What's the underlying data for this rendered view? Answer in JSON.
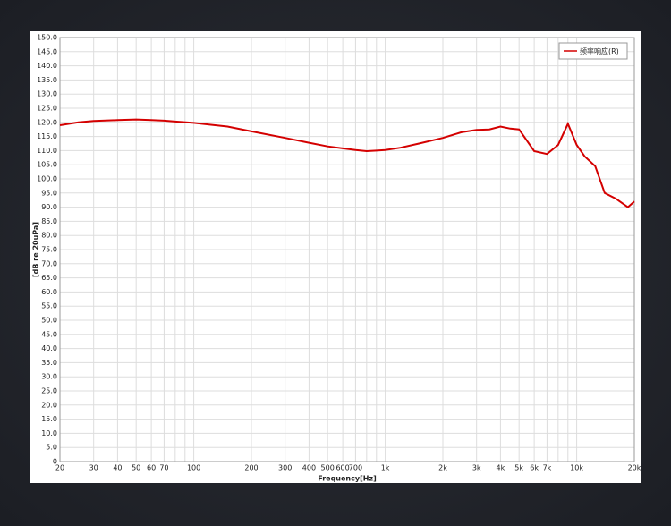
{
  "chart_data": {
    "type": "line",
    "xlabel": "Frequency[Hz]",
    "ylabel": "[dB re 20uPa]",
    "xscale": "log",
    "grid": true,
    "legend": "upper right",
    "xlim": [
      20,
      20000
    ],
    "ylim": [
      0,
      150
    ],
    "xticks": [
      20,
      30,
      40,
      50,
      60,
      70,
      100,
      200,
      300,
      400,
      500,
      600,
      700,
      {
        "value": 1000,
        "label": "1k"
      },
      {
        "value": 2000,
        "label": "2k"
      },
      {
        "value": 3000,
        "label": "3k"
      },
      {
        "value": 4000,
        "label": "4k"
      },
      {
        "value": 5000,
        "label": "5k"
      },
      {
        "value": 6000,
        "label": "6k"
      },
      {
        "value": 7000,
        "label": "7k"
      },
      {
        "value": 10000,
        "label": "10k"
      },
      {
        "value": 20000,
        "label": "20k"
      }
    ],
    "minor_xticks": [
      80,
      90,
      800,
      900,
      8000,
      9000
    ],
    "yticks": [
      0,
      {
        "value": 5,
        "label": "5.0"
      },
      {
        "value": 10,
        "label": "10.0"
      },
      {
        "value": 15,
        "label": "15.0"
      },
      {
        "value": 20,
        "label": "20.0"
      },
      {
        "value": 25,
        "label": "25.0"
      },
      {
        "value": 30,
        "label": "30.0"
      },
      {
        "value": 35,
        "label": "35.0"
      },
      {
        "value": 40,
        "label": "40.0"
      },
      {
        "value": 45,
        "label": "45.0"
      },
      {
        "value": 50,
        "label": "50.0"
      },
      {
        "value": 55,
        "label": "55.0"
      },
      {
        "value": 60,
        "label": "60.0"
      },
      {
        "value": 65,
        "label": "65.0"
      },
      {
        "value": 70,
        "label": "70.0"
      },
      {
        "value": 75,
        "label": "75.0"
      },
      {
        "value": 80,
        "label": "80.0"
      },
      {
        "value": 85,
        "label": "85.0"
      },
      {
        "value": 90,
        "label": "90.0"
      },
      {
        "value": 95,
        "label": "95.0"
      },
      {
        "value": 100,
        "label": "100.0"
      },
      {
        "value": 105,
        "label": "105.0"
      },
      {
        "value": 110,
        "label": "110.0"
      },
      {
        "value": 115,
        "label": "115.0"
      },
      {
        "value": 120,
        "label": "120.0"
      },
      {
        "value": 125,
        "label": "125.0"
      },
      {
        "value": 130,
        "label": "130.0"
      },
      {
        "value": 135,
        "label": "135.0"
      },
      {
        "value": 140,
        "label": "140.0"
      },
      {
        "value": 145,
        "label": "145.0"
      },
      {
        "value": 150,
        "label": "150.0"
      }
    ],
    "x": [
      20,
      25,
      30,
      40,
      50,
      60,
      70,
      80,
      100,
      120,
      150,
      200,
      300,
      400,
      500,
      600,
      700,
      800,
      900,
      1000,
      1200,
      1500,
      2000,
      2500,
      3000,
      3500,
      4000,
      4500,
      5000,
      6000,
      7000,
      8000,
      9000,
      10000,
      11000,
      12500,
      14000,
      16000,
      18500,
      20000
    ],
    "series": [
      {
        "name": "频率响应(R)",
        "color": "#d40000",
        "values": [
          119,
          120,
          120.5,
          120.8,
          121,
          120.8,
          120.6,
          120.3,
          119.8,
          119.2,
          118.5,
          116.8,
          114.5,
          112.8,
          111.5,
          110.8,
          110.2,
          109.8,
          110,
          110.2,
          111,
          112.5,
          114.5,
          116.5,
          117.3,
          117.5,
          118.5,
          117.8,
          117.5,
          109.8,
          108.8,
          112,
          119.5,
          112,
          108,
          104.5,
          95,
          93,
          90,
          92
        ]
      }
    ]
  }
}
